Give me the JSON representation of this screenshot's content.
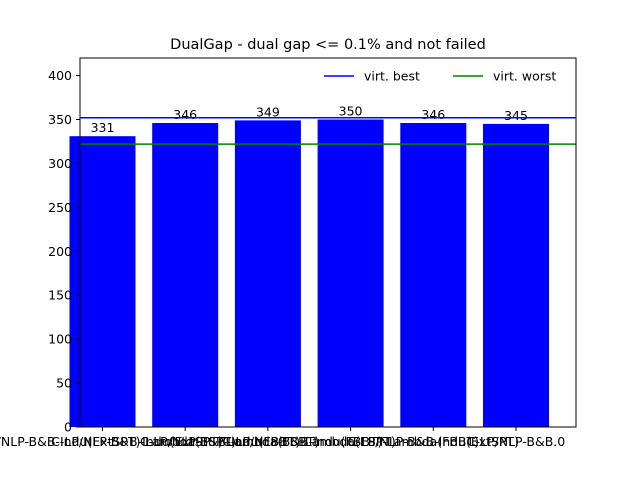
{
  "chart_data": {
    "type": "bar",
    "title": "DualGap - dual gap <= 0.1% and not failed",
    "xlabel": "",
    "ylabel": "",
    "ylim": [
      0,
      420
    ],
    "yticks": [
      0,
      50,
      100,
      150,
      200,
      250,
      300,
      350,
      400
    ],
    "categories": [
      "C-LP/NLP-B&B-Indu(ExtSPT)-Lambda(ESPT)",
      "C-LP/NLP-B&B-Indu(ExtSPT)-Lambda(FBBT)",
      "C-LP/NLP-B&B-Indu(FBBT)-Lambda(ESPT)",
      "C-LP/NLP-B&B-Indu(FBBT)-Lambda(FBBT)",
      "C-LP/NLP-B&B-Indu(ExtSPT)",
      "C-LP/NLP-B&B.0"
    ],
    "values": [
      331,
      346,
      349,
      350,
      346,
      345
    ],
    "bar_color": "#0000ff",
    "reference_lines": [
      {
        "name": "virt. best",
        "value": 352,
        "color": "#0000ff"
      },
      {
        "name": "virt. worst",
        "value": 322,
        "color": "#008000"
      }
    ],
    "legend_position": "top-right",
    "grid": false
  }
}
